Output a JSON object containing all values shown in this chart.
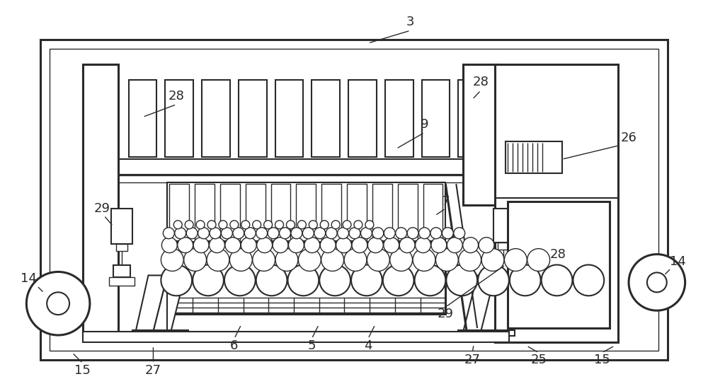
{
  "bg_color": "#ffffff",
  "line_color": "#2a2a2a",
  "fig_width": 10.0,
  "fig_height": 5.53,
  "lw_thin": 1.0,
  "lw_med": 1.5,
  "lw_thick": 2.2
}
